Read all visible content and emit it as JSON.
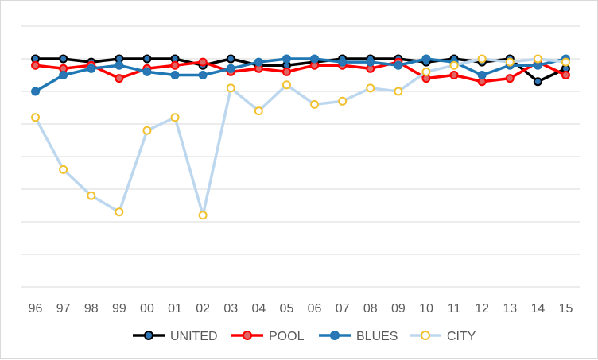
{
  "chart_data": {
    "type": "line",
    "title": "",
    "xlabel": "",
    "ylabel": "",
    "categories": [
      "96",
      "97",
      "98",
      "99",
      "00",
      "01",
      "02",
      "03",
      "04",
      "05",
      "06",
      "07",
      "08",
      "09",
      "10",
      "11",
      "12",
      "13",
      "14",
      "15"
    ],
    "ylim": [
      0,
      8
    ],
    "grid": true,
    "legend_position": "bottom",
    "series": [
      {
        "name": "UNITED",
        "color": "#000000",
        "marker_fill": "#2e75b6",
        "values": [
          7.0,
          7.0,
          6.9,
          7.0,
          7.0,
          7.0,
          6.8,
          7.0,
          6.8,
          6.8,
          6.9,
          7.0,
          7.0,
          7.0,
          6.9,
          7.0,
          6.9,
          7.0,
          6.3,
          6.7
        ]
      },
      {
        "name": "POOL",
        "color": "#ff0000",
        "marker_fill": "#e06666",
        "values": [
          6.8,
          6.7,
          6.8,
          6.4,
          6.7,
          6.8,
          6.9,
          6.6,
          6.7,
          6.6,
          6.8,
          6.8,
          6.7,
          6.9,
          6.4,
          6.5,
          6.3,
          6.4,
          6.9,
          6.5
        ]
      },
      {
        "name": "BLUES",
        "color": "#1f77b4",
        "marker_fill": "#2e75b6",
        "values": [
          6.0,
          6.5,
          6.7,
          6.8,
          6.6,
          6.5,
          6.5,
          6.7,
          6.9,
          7.0,
          7.0,
          6.9,
          6.9,
          6.8,
          7.0,
          6.9,
          6.5,
          6.8,
          6.8,
          7.0
        ]
      },
      {
        "name": "CITY",
        "color": "#bdd7ee",
        "marker_fill": "#ffffff",
        "marker_stroke": "#f2c12e",
        "values": [
          5.2,
          3.6,
          2.8,
          2.3,
          4.8,
          5.2,
          2.2,
          6.1,
          5.4,
          6.2,
          5.6,
          5.7,
          6.1,
          6.0,
          6.6,
          6.8,
          7.0,
          6.9,
          7.0,
          6.9
        ]
      }
    ]
  }
}
